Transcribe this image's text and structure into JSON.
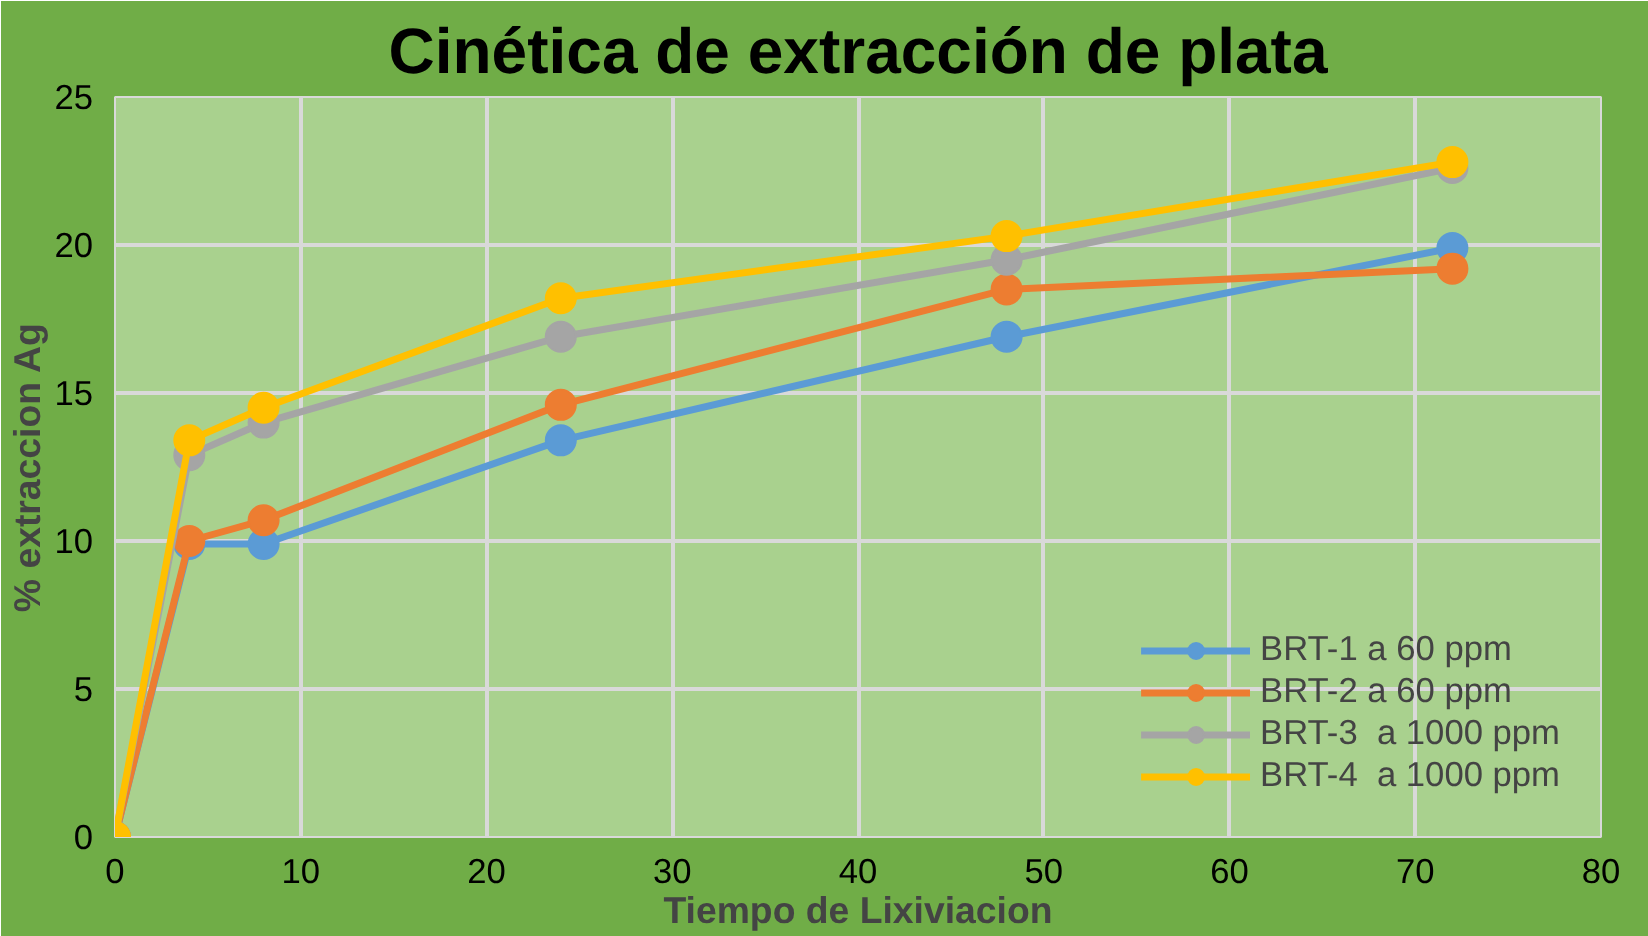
{
  "chart_data": {
    "type": "line",
    "title": "Cinética de extracción de plata",
    "xlabel": "Tiempo de Lixiviacion",
    "ylabel": "% extraccion Ag",
    "x": [
      0,
      4,
      8,
      24,
      48,
      72
    ],
    "series": [
      {
        "name": "BRT-1 a 60 ppm",
        "color": "#5b9bd5",
        "values": [
          0,
          9.9,
          9.9,
          13.4,
          16.9,
          19.9
        ]
      },
      {
        "name": "BRT-2 a 60 ppm",
        "color": "#ed7d31",
        "values": [
          0,
          10.0,
          10.7,
          14.6,
          18.5,
          19.2
        ]
      },
      {
        "name": "BRT-3  a 1000 ppm",
        "color": "#a5a5a5",
        "values": [
          0,
          12.9,
          14.0,
          16.9,
          19.5,
          22.6
        ]
      },
      {
        "name": "BRT-4  a 1000 ppm",
        "color": "#ffc000",
        "values": [
          0,
          13.4,
          14.5,
          18.2,
          20.3,
          22.8
        ]
      }
    ],
    "xlim": [
      0,
      80
    ],
    "xticks": [
      0,
      10,
      20,
      30,
      40,
      50,
      60,
      70,
      80
    ],
    "ylim": [
      0,
      25
    ],
    "yticks": [
      0,
      5,
      10,
      15,
      20,
      25
    ],
    "grid": true,
    "legend": "bottom right",
    "marker": "circle",
    "line_style": "solid"
  }
}
